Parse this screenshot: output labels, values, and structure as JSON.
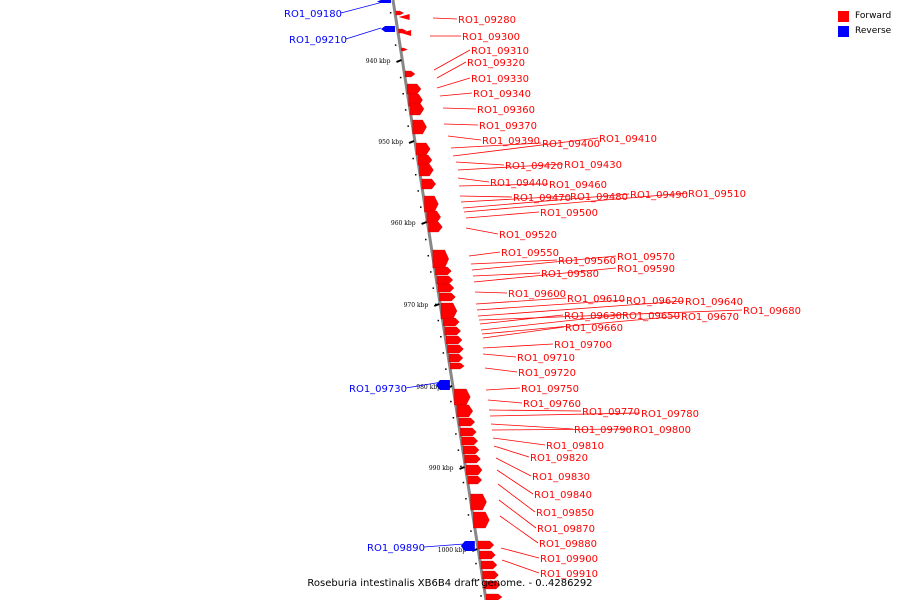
{
  "colors": {
    "forward": "#ff0000",
    "reverse": "#0000ff",
    "axis": "#888888"
  },
  "legend": [
    {
      "label": "Forward",
      "color": "#ff0000"
    },
    {
      "label": "Reverse",
      "color": "#0000ff"
    }
  ],
  "caption": "Roseburia intestinalis XB6B4 draft genome. - 0..4286292",
  "ticks": [
    "940 kbp",
    "950 kbp",
    "960 kbp",
    "970 kbp",
    "980 kbp",
    "990 kbp",
    "1000 kbp"
  ],
  "genes": [
    {
      "label": "RO1_09180",
      "strand": "reverse"
    },
    {
      "label": "RO1_09210",
      "strand": "reverse"
    },
    {
      "label": "RO1_09280",
      "strand": "forward"
    },
    {
      "label": "RO1_09300",
      "strand": "forward"
    },
    {
      "label": "RO1_09310",
      "strand": "forward"
    },
    {
      "label": "RO1_09320",
      "strand": "forward"
    },
    {
      "label": "RO1_09330",
      "strand": "forward"
    },
    {
      "label": "RO1_09340",
      "strand": "forward"
    },
    {
      "label": "RO1_09360",
      "strand": "forward"
    },
    {
      "label": "RO1_09370",
      "strand": "forward"
    },
    {
      "label": "RO1_09390",
      "strand": "forward"
    },
    {
      "label": "RO1_09400",
      "strand": "forward"
    },
    {
      "label": "RO1_09410",
      "strand": "forward"
    },
    {
      "label": "RO1_09420",
      "strand": "forward"
    },
    {
      "label": "RO1_09430",
      "strand": "forward"
    },
    {
      "label": "RO1_09440",
      "strand": "forward"
    },
    {
      "label": "RO1_09460",
      "strand": "forward"
    },
    {
      "label": "RO1_09470",
      "strand": "forward"
    },
    {
      "label": "RO1_09480",
      "strand": "forward"
    },
    {
      "label": "RO1_09490",
      "strand": "forward"
    },
    {
      "label": "RO1_09510",
      "strand": "forward"
    },
    {
      "label": "RO1_09500",
      "strand": "forward"
    },
    {
      "label": "RO1_09520",
      "strand": "forward"
    },
    {
      "label": "RO1_09550",
      "strand": "forward"
    },
    {
      "label": "RO1_09560",
      "strand": "forward"
    },
    {
      "label": "RO1_09570",
      "strand": "forward"
    },
    {
      "label": "RO1_09580",
      "strand": "forward"
    },
    {
      "label": "RO1_09590",
      "strand": "forward"
    },
    {
      "label": "RO1_09600",
      "strand": "forward"
    },
    {
      "label": "RO1_09610",
      "strand": "forward"
    },
    {
      "label": "RO1_09620",
      "strand": "forward"
    },
    {
      "label": "RO1_09640",
      "strand": "forward"
    },
    {
      "label": "RO1_09680",
      "strand": "forward"
    },
    {
      "label": "RO1_09630",
      "strand": "forward"
    },
    {
      "label": "RO1_09650",
      "strand": "forward"
    },
    {
      "label": "RO1_09670",
      "strand": "forward"
    },
    {
      "label": "RO1_09660",
      "strand": "forward"
    },
    {
      "label": "RO1_09700",
      "strand": "forward"
    },
    {
      "label": "RO1_09710",
      "strand": "forward"
    },
    {
      "label": "RO1_09720",
      "strand": "forward"
    },
    {
      "label": "RO1_09730",
      "strand": "reverse"
    },
    {
      "label": "RO1_09750",
      "strand": "forward"
    },
    {
      "label": "RO1_09760",
      "strand": "forward"
    },
    {
      "label": "RO1_09770",
      "strand": "forward"
    },
    {
      "label": "RO1_09780",
      "strand": "forward"
    },
    {
      "label": "RO1_09790",
      "strand": "forward"
    },
    {
      "label": "RO1_09800",
      "strand": "forward"
    },
    {
      "label": "RO1_09810",
      "strand": "forward"
    },
    {
      "label": "RO1_09820",
      "strand": "forward"
    },
    {
      "label": "RO1_09830",
      "strand": "forward"
    },
    {
      "label": "RO1_09840",
      "strand": "forward"
    },
    {
      "label": "RO1_09850",
      "strand": "forward"
    },
    {
      "label": "RO1_09870",
      "strand": "forward"
    },
    {
      "label": "RO1_09880",
      "strand": "forward"
    },
    {
      "label": "RO1_09890",
      "strand": "reverse"
    },
    {
      "label": "RO1_09900",
      "strand": "forward"
    },
    {
      "label": "RO1_09910",
      "strand": "forward"
    }
  ]
}
